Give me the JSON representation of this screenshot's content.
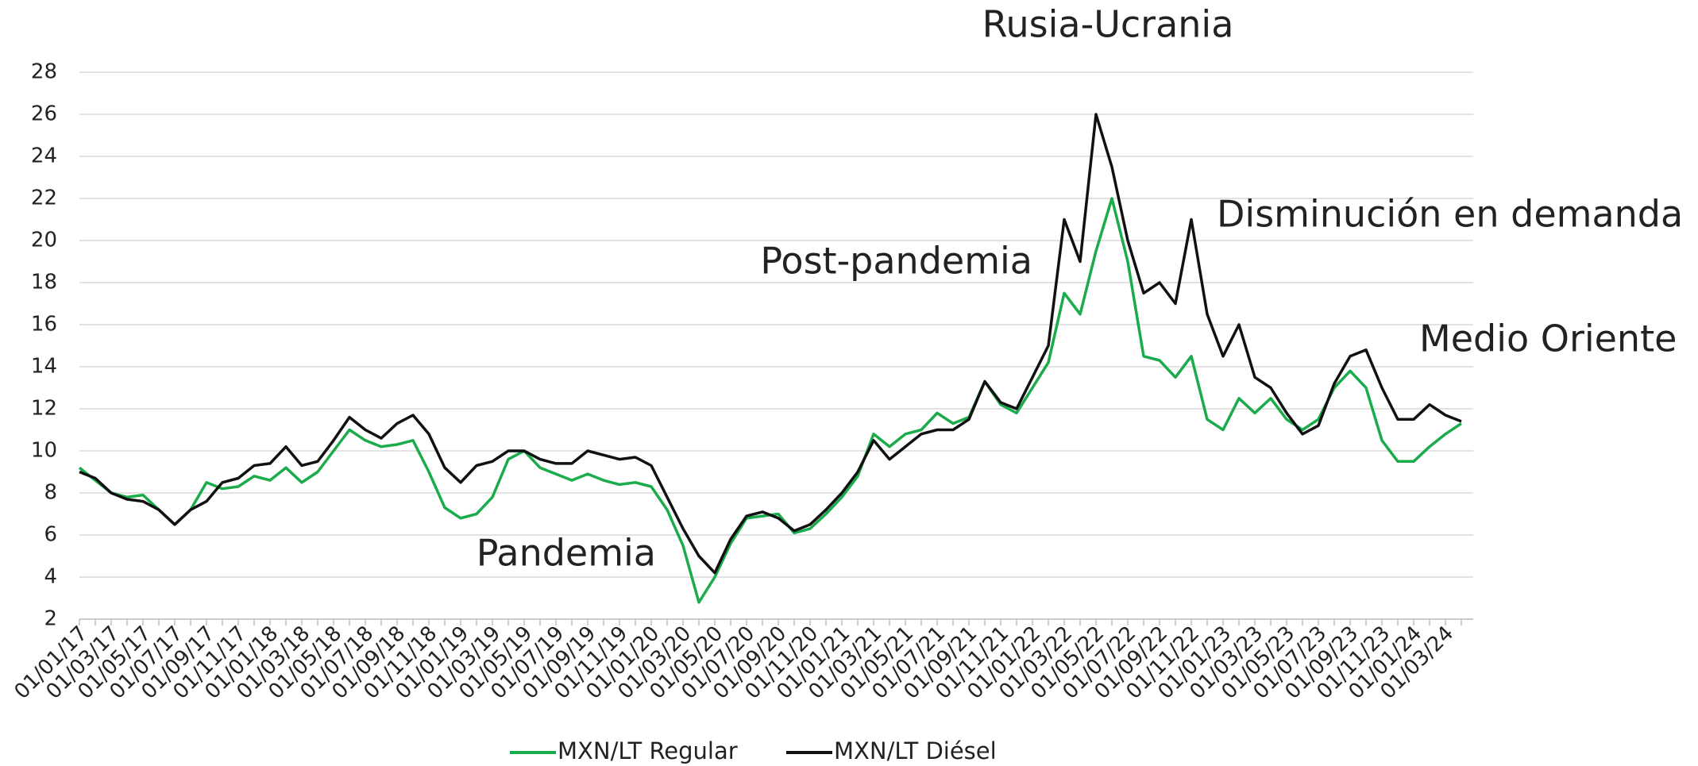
{
  "chart_data": {
    "type": "line",
    "categories": [
      "01/01/17",
      null,
      "01/03/17",
      null,
      "01/05/17",
      null,
      "01/07/17",
      null,
      "01/09/17",
      null,
      "01/11/17",
      null,
      "01/01/18",
      null,
      "01/03/18",
      null,
      "01/05/18",
      null,
      "01/07/18",
      null,
      "01/09/18",
      null,
      "01/11/18",
      null,
      "01/01/19",
      null,
      "01/03/19",
      null,
      "01/05/19",
      null,
      "01/07/19",
      null,
      "01/09/19",
      null,
      "01/11/19",
      null,
      "01/01/20",
      null,
      "01/03/20",
      null,
      "01/05/20",
      null,
      "01/07/20",
      null,
      "01/09/20",
      null,
      "01/11/20",
      null,
      "01/01/21",
      null,
      "01/03/21",
      null,
      "01/05/21",
      null,
      "01/07/21",
      null,
      "01/09/21",
      null,
      "01/11/21",
      null,
      "01/01/22",
      null,
      "01/03/22",
      null,
      "01/05/22",
      null,
      "01/07/22",
      null,
      "01/09/22",
      null,
      "01/11/22",
      null,
      "01/01/23",
      null,
      "01/03/23",
      null,
      "01/05/23",
      null,
      "01/07/23",
      null,
      "01/09/23",
      null,
      "01/11/23",
      null,
      "01/01/24",
      null,
      "01/03/24",
      null
    ],
    "series": [
      {
        "name": "MXN/LT Regular",
        "color": "#1aab4b",
        "values": [
          9.2,
          8.6,
          8.0,
          7.8,
          7.9,
          7.2,
          6.5,
          7.2,
          8.5,
          8.2,
          8.3,
          8.8,
          8.6,
          9.2,
          8.5,
          9.0,
          10.0,
          11.0,
          10.5,
          10.2,
          10.3,
          10.5,
          9.0,
          7.3,
          6.8,
          7.0,
          7.8,
          9.6,
          10.0,
          9.2,
          8.9,
          8.6,
          8.9,
          8.6,
          8.4,
          8.5,
          8.3,
          7.2,
          5.5,
          2.8,
          4.0,
          5.6,
          6.8,
          6.9,
          7.0,
          6.1,
          6.3,
          7.0,
          7.8,
          8.8,
          10.8,
          10.2,
          10.8,
          11.0,
          11.8,
          11.3,
          11.6,
          13.3,
          12.2,
          11.8,
          13.0,
          14.2,
          17.5,
          16.5,
          19.5,
          22.0,
          19.0,
          14.5,
          14.3,
          13.5,
          14.5,
          11.5,
          11.0,
          12.5,
          11.8,
          12.5,
          11.5,
          11.0,
          11.5,
          13.0,
          13.8,
          13.0,
          10.5,
          9.5,
          9.5,
          10.2,
          10.8,
          11.3
        ]
      },
      {
        "name": "MXN/LT Diésel",
        "color": "#111111",
        "values": [
          9.0,
          8.7,
          8.0,
          7.7,
          7.6,
          7.2,
          6.5,
          7.2,
          7.6,
          8.5,
          8.7,
          9.3,
          9.4,
          10.2,
          9.3,
          9.5,
          10.5,
          11.6,
          11.0,
          10.6,
          11.3,
          11.7,
          10.8,
          9.2,
          8.5,
          9.3,
          9.5,
          10.0,
          10.0,
          9.6,
          9.4,
          9.4,
          10.0,
          9.8,
          9.6,
          9.7,
          9.3,
          7.8,
          6.3,
          5.0,
          4.2,
          5.8,
          6.9,
          7.1,
          6.8,
          6.2,
          6.5,
          7.2,
          8.0,
          9.0,
          10.5,
          9.6,
          10.2,
          10.8,
          11.0,
          11.0,
          11.5,
          13.3,
          12.3,
          12.0,
          13.5,
          15.0,
          21.0,
          19.0,
          26.0,
          23.5,
          20.0,
          17.5,
          18.0,
          17.0,
          21.0,
          16.5,
          14.5,
          16.0,
          13.5,
          13.0,
          11.8,
          10.8,
          11.2,
          13.2,
          14.5,
          14.8,
          13.0,
          11.5,
          11.5,
          12.2,
          11.7,
          11.4
        ]
      }
    ],
    "ylim": [
      2,
      28
    ],
    "yticks": [
      2,
      4,
      6,
      8,
      10,
      12,
      14,
      16,
      18,
      20,
      22,
      24,
      26,
      28
    ],
    "grid": true,
    "annotations": [
      "Rusia-Ucrania",
      "Post-pandemia",
      "Disminución en demanda",
      "Medio Oriente",
      "Pandemia"
    ],
    "legend": "bottom"
  }
}
